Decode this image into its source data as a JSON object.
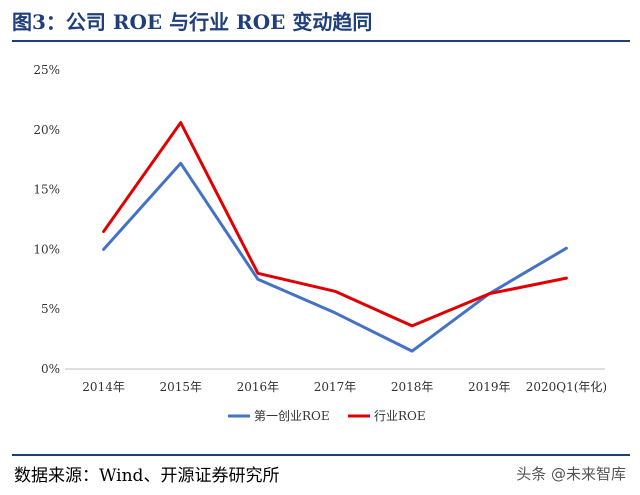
{
  "header": {
    "title": "图3：公司 ROE 与行业 ROE 变动趋同"
  },
  "footer": {
    "source": "数据来源：Wind、开源证券研究所",
    "watermark": "头条 @未来智库"
  },
  "chart_data": {
    "type": "line",
    "categories": [
      "2014年",
      "2015年",
      "2016年",
      "2017年",
      "2018年",
      "2019年",
      "2020Q1(年化)"
    ],
    "series": [
      {
        "name": "第一创业ROE",
        "color": "#4472c4",
        "values": [
          10.0,
          17.2,
          7.5,
          4.7,
          1.5,
          6.3,
          10.1
        ]
      },
      {
        "name": "行业ROE",
        "color": "#e00000",
        "values": [
          11.5,
          20.6,
          8.0,
          6.5,
          3.6,
          6.3,
          7.6
        ]
      }
    ],
    "yticks": [
      "0%",
      "5%",
      "10%",
      "15%",
      "20%",
      "25%"
    ],
    "ylim": [
      0,
      25
    ],
    "legend_position": "bottom",
    "grid": false
  }
}
